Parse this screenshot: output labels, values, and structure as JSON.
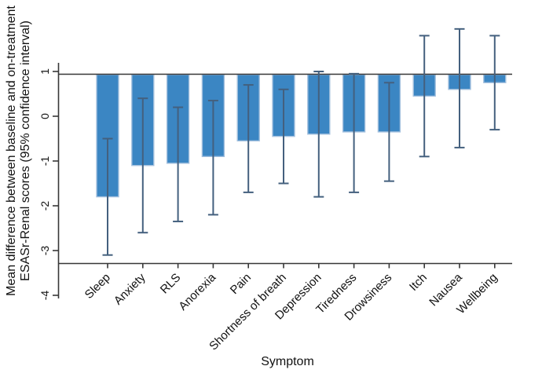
{
  "figure": {
    "xlabel": "Symptom",
    "ylabel_line1": "Mean difference between baseline and on-treatment",
    "ylabel_line2": "ESASr-Renal scores (95% confidence interval)"
  },
  "chart_data": {
    "type": "bar",
    "title": "",
    "xlabel": "Symptom",
    "ylabel": "Mean difference between baseline and on-treatment ESASr-Renal scores (95% confidence interval)",
    "categories": [
      "Sleep",
      "Anxiety",
      "RLS",
      "Anorexia",
      "Pain",
      "Shortness of breath",
      "Depression",
      "Tiredness",
      "Drowsiness",
      "Itch",
      "Nausea",
      "Wellbeing"
    ],
    "values": [
      -1.8,
      -1.1,
      -1.05,
      -0.9,
      -0.55,
      -0.45,
      -0.4,
      -0.35,
      -0.35,
      0.45,
      0.6,
      0.75
    ],
    "ci_low": [
      -3.1,
      -2.6,
      -2.35,
      -2.2,
      -1.7,
      -1.5,
      -1.8,
      -1.7,
      -1.45,
      -0.9,
      -0.7,
      -0.3
    ],
    "ci_high": [
      -0.5,
      0.4,
      0.2,
      0.35,
      0.7,
      0.6,
      1.0,
      0.95,
      0.75,
      1.8,
      1.95,
      1.8
    ],
    "yticks": [
      1,
      0,
      -1,
      -2,
      -3,
      -4
    ],
    "ylim": [
      -4.1,
      1.2
    ],
    "reference_line": 0.95,
    "bars_hang_from_reference_line": true,
    "grid": false,
    "legend": false,
    "bar_color": "#3B86C3",
    "bar_edge_color": "#A3C0DE",
    "error_bar_color": "#44607E",
    "axis_color": "#373737",
    "text_color": "#111111"
  }
}
